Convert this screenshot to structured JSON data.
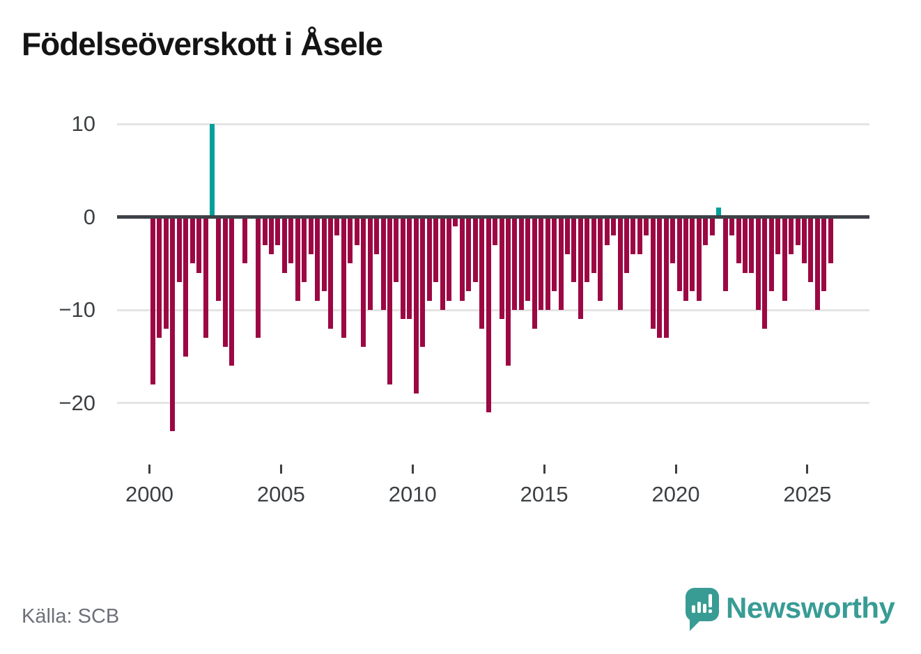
{
  "title": "Födelseöverskott i Åsele",
  "source": "Källa: SCB",
  "branding": {
    "name": "Newsworthy",
    "icon": "newsworthy-speech-bubble-chart-icon"
  },
  "colors": {
    "negative_bar": "#9c0843",
    "positive_bar": "#00a09b",
    "zero_line": "#3d4247",
    "gridline": "#e4e4e4",
    "axis_text": "#3c4043",
    "source_text": "#6d7078",
    "brand_teal": "#389c95",
    "title_text": "#141414",
    "background": "#ffffff"
  },
  "chart_data": {
    "type": "bar",
    "title": "Födelseöverskott i Åsele",
    "xlabel": "",
    "ylabel": "",
    "grid": true,
    "legend": false,
    "ylim": [
      -24.5,
      11.5
    ],
    "yticks": [
      10,
      0,
      -10,
      -20
    ],
    "xticks": [
      2000,
      2005,
      2010,
      2015,
      2020,
      2025
    ],
    "x_unit": "quarter",
    "categories": [
      "2000 Q1",
      "2000 Q2",
      "2000 Q3",
      "2000 Q4",
      "2001 Q1",
      "2001 Q2",
      "2001 Q3",
      "2001 Q4",
      "2002 Q1",
      "2002 Q2",
      "2002 Q3",
      "2002 Q4",
      "2003 Q1",
      "2003 Q2",
      "2003 Q3",
      "2003 Q4",
      "2004 Q1",
      "2004 Q2",
      "2004 Q3",
      "2004 Q4",
      "2005 Q1",
      "2005 Q2",
      "2005 Q3",
      "2005 Q4",
      "2006 Q1",
      "2006 Q2",
      "2006 Q3",
      "2006 Q4",
      "2007 Q1",
      "2007 Q2",
      "2007 Q3",
      "2007 Q4",
      "2008 Q1",
      "2008 Q2",
      "2008 Q3",
      "2008 Q4",
      "2009 Q1",
      "2009 Q2",
      "2009 Q3",
      "2009 Q4",
      "2010 Q1",
      "2010 Q2",
      "2010 Q3",
      "2010 Q4",
      "2011 Q1",
      "2011 Q2",
      "2011 Q3",
      "2011 Q4",
      "2012 Q1",
      "2012 Q2",
      "2012 Q3",
      "2012 Q4",
      "2013 Q1",
      "2013 Q2",
      "2013 Q3",
      "2013 Q4",
      "2014 Q1",
      "2014 Q2",
      "2014 Q3",
      "2014 Q4",
      "2015 Q1",
      "2015 Q2",
      "2015 Q3",
      "2015 Q4",
      "2016 Q1",
      "2016 Q2",
      "2016 Q3",
      "2016 Q4",
      "2017 Q1",
      "2017 Q2",
      "2017 Q3",
      "2017 Q4",
      "2018 Q1",
      "2018 Q2",
      "2018 Q3",
      "2018 Q4",
      "2019 Q1",
      "2019 Q2",
      "2019 Q3",
      "2019 Q4",
      "2020 Q1",
      "2020 Q2",
      "2020 Q3",
      "2020 Q4",
      "2021 Q1",
      "2021 Q2",
      "2021 Q3",
      "2021 Q4",
      "2022 Q1",
      "2022 Q2",
      "2022 Q3",
      "2022 Q4",
      "2023 Q1",
      "2023 Q2",
      "2023 Q3",
      "2023 Q4",
      "2024 Q1",
      "2024 Q2",
      "2024 Q3",
      "2024 Q4",
      "2025 Q1",
      "2025 Q2",
      "2025 Q3",
      "2025 Q4"
    ],
    "values": [
      -18,
      -13,
      -12,
      -23,
      -7,
      -15,
      -5,
      -6,
      -13,
      10,
      -9,
      -14,
      -16,
      0,
      -5,
      0,
      -13,
      -3,
      -4,
      -3,
      -6,
      -5,
      -9,
      -7,
      -4,
      -9,
      -8,
      -12,
      -2,
      -13,
      -5,
      -3,
      -14,
      -10,
      -4,
      -10,
      -18,
      -7,
      -11,
      -11,
      -19,
      -14,
      -9,
      -7,
      -10,
      -9,
      -1,
      -9,
      -8,
      -7,
      -12,
      -21,
      -3,
      -11,
      -16,
      -10,
      -10,
      -9,
      -12,
      -10,
      -10,
      -8,
      -10,
      -4,
      -7,
      -11,
      -7,
      -6,
      -9,
      -3,
      -2,
      -10,
      -6,
      -4,
      -4,
      -2,
      -12,
      -13,
      -13,
      -5,
      -8,
      -9,
      -8,
      -9,
      -3,
      -2,
      1,
      -8,
      -2,
      -5,
      -6,
      -6,
      -10,
      -12,
      -8,
      -4,
      -9,
      -4,
      -3,
      -5,
      -7,
      -10,
      -8,
      -5
    ]
  }
}
